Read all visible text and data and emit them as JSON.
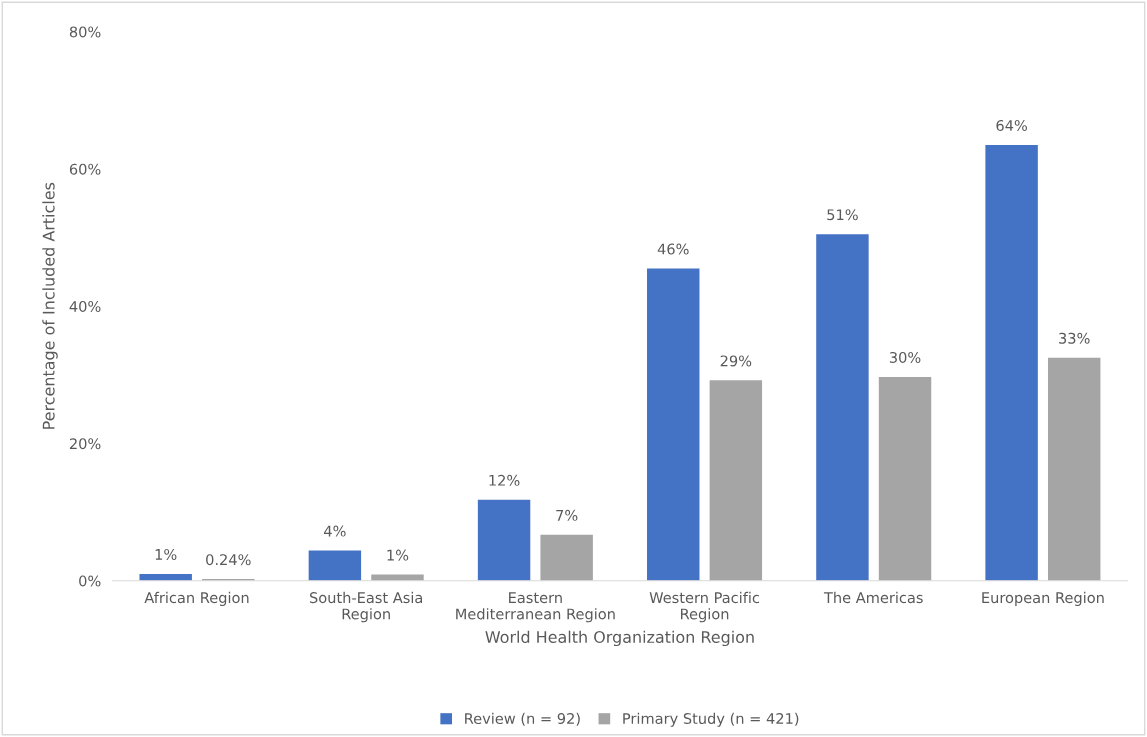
{
  "chart_data": {
    "type": "bar",
    "xlabel": "World Health Organization Region",
    "ylabel": "Percentage of Included Articles",
    "categories": [
      "African Region",
      "South-East Asia\nRegion",
      "Eastern\nMediterranean Region",
      "Western Pacific\nRegion",
      "The Americas",
      "European Region"
    ],
    "series": [
      {
        "name": "Review (n = 92)",
        "color": "#4472c4",
        "values": [
          1.0,
          4.4,
          11.8,
          45.5,
          50.5,
          63.5
        ],
        "value_labels": [
          "1%",
          "4%",
          "12%",
          "46%",
          "51%",
          "64%"
        ]
      },
      {
        "name": "Primary Study (n = 421)",
        "color": "#a5a5a5",
        "values": [
          0.24,
          0.9,
          6.7,
          29.2,
          29.7,
          32.5
        ],
        "value_labels": [
          "0.24%",
          "1%",
          "7%",
          "29%",
          "30%",
          "33%"
        ]
      }
    ],
    "ylim": [
      0,
      80
    ],
    "yticks": [
      {
        "value": 0,
        "label": "0%"
      },
      {
        "value": 20,
        "label": "20%"
      },
      {
        "value": 40,
        "label": "40%"
      },
      {
        "value": 60,
        "label": "60%"
      },
      {
        "value": 80,
        "label": "80%"
      }
    ],
    "grid": false,
    "legend": "bottom"
  }
}
